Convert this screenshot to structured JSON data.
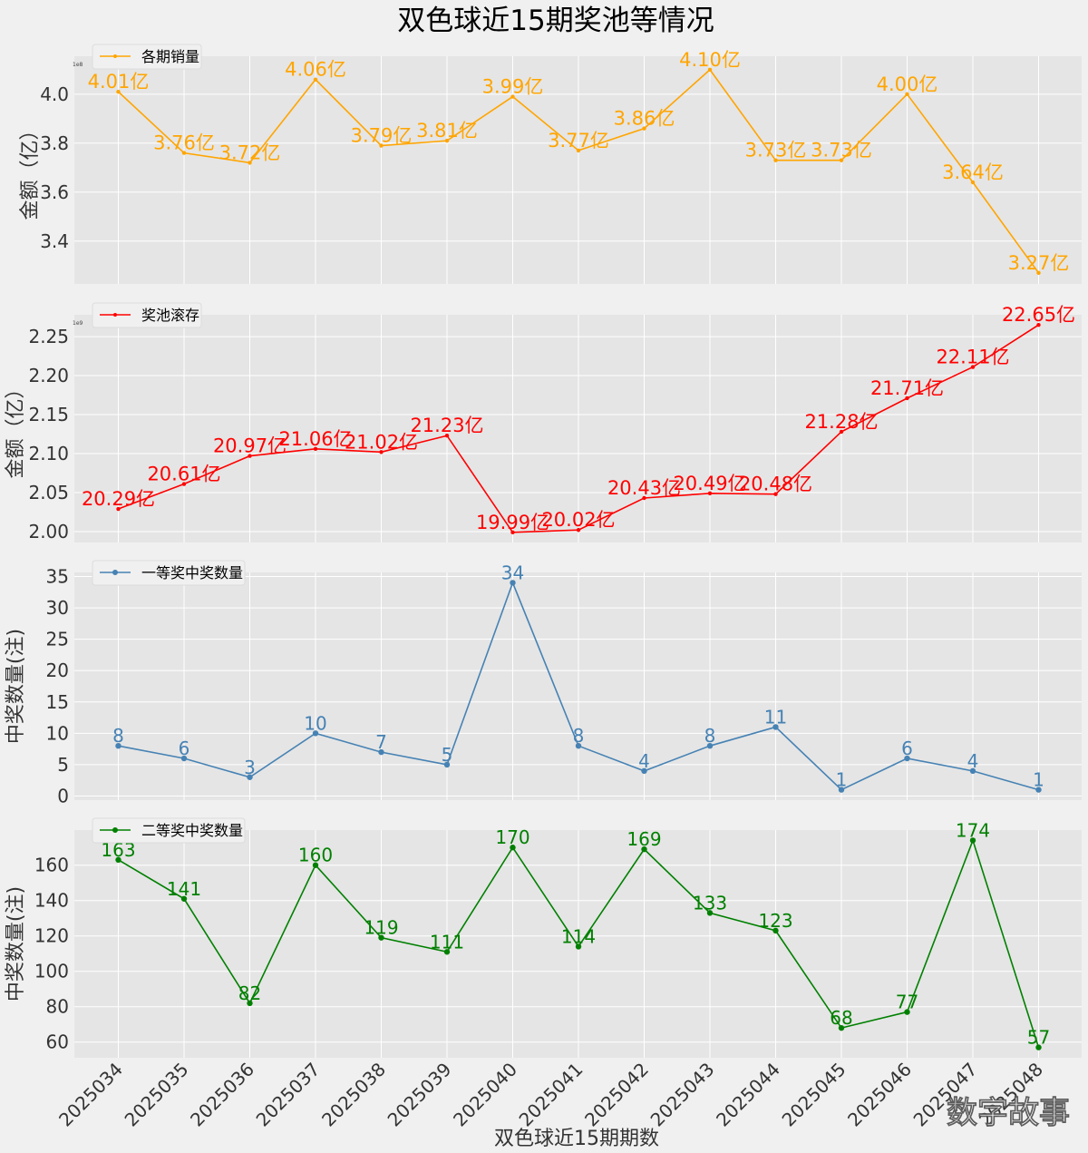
{
  "figure": {
    "title": "双色球近15期奖池等情况",
    "xlabel": "双色球近15期期数",
    "watermark": "数字故事",
    "background": "#f0f0f0",
    "plot_background": "#e5e5e5",
    "grid_color": "#ffffff"
  },
  "chart_data": [
    {
      "type": "line",
      "legend": "各期销量",
      "color": "#FFA500",
      "ylabel": "金额（亿）",
      "scale_note": "1e8",
      "categories": [
        "2025034",
        "2025035",
        "2025036",
        "2025037",
        "2025038",
        "2025039",
        "2025040",
        "2025041",
        "2025042",
        "2025043",
        "2025044",
        "2025045",
        "2025046",
        "2025047",
        "2025048"
      ],
      "values": [
        4.01,
        3.76,
        3.72,
        4.06,
        3.79,
        3.81,
        3.99,
        3.77,
        3.86,
        4.1,
        3.73,
        3.73,
        4.0,
        3.64,
        3.27
      ],
      "data_labels": [
        "4.01亿",
        "3.76亿",
        "3.72亿",
        "4.06亿",
        "3.79亿",
        "3.81亿",
        "3.99亿",
        "3.77亿",
        "3.86亿",
        "4.10亿",
        "3.73亿",
        "3.73亿",
        "4.00亿",
        "3.64亿",
        "3.27亿"
      ],
      "ylim": [
        3.225,
        4.155
      ],
      "yticks": [
        3.4,
        3.6,
        3.8,
        4.0
      ],
      "ytick_labels": [
        "3.4",
        "3.6",
        "3.8",
        "4.0"
      ],
      "grid": true,
      "legend_position": "top-left"
    },
    {
      "type": "line",
      "legend": "奖池滚存",
      "color": "#FF0000",
      "ylabel": "金额（亿）",
      "scale_note": "1e9",
      "categories": [
        "2025034",
        "2025035",
        "2025036",
        "2025037",
        "2025038",
        "2025039",
        "2025040",
        "2025041",
        "2025042",
        "2025043",
        "2025044",
        "2025045",
        "2025046",
        "2025047",
        "2025048"
      ],
      "values": [
        2.029,
        2.061,
        2.097,
        2.106,
        2.102,
        2.123,
        1.999,
        2.002,
        2.043,
        2.049,
        2.048,
        2.128,
        2.171,
        2.211,
        2.265
      ],
      "data_labels": [
        "20.29亿",
        "20.61亿",
        "20.97亿",
        "21.06亿",
        "21.02亿",
        "21.23亿",
        "19.99亿",
        "20.02亿",
        "20.43亿",
        "20.49亿",
        "20.48亿",
        "21.28亿",
        "21.71亿",
        "22.11亿",
        "22.65亿"
      ],
      "ylim": [
        1.986,
        2.278
      ],
      "yticks": [
        2.0,
        2.05,
        2.1,
        2.15,
        2.2,
        2.25
      ],
      "ytick_labels": [
        "2.00",
        "2.05",
        "2.10",
        "2.15",
        "2.20",
        "2.25"
      ],
      "grid": true,
      "legend_position": "top-left"
    },
    {
      "type": "line",
      "legend": "一等奖中奖数量",
      "color": "#4682B4",
      "ylabel": "中奖数量(注)",
      "categories": [
        "2025034",
        "2025035",
        "2025036",
        "2025037",
        "2025038",
        "2025039",
        "2025040",
        "2025041",
        "2025042",
        "2025043",
        "2025044",
        "2025045",
        "2025046",
        "2025047",
        "2025048"
      ],
      "values": [
        8,
        6,
        3,
        10,
        7,
        5,
        34,
        8,
        4,
        8,
        11,
        1,
        6,
        4,
        1
      ],
      "data_labels": [
        "8",
        "6",
        "3",
        "10",
        "7",
        "5",
        "34",
        "8",
        "4",
        "8",
        "11",
        "1",
        "6",
        "4",
        "1"
      ],
      "ylim": [
        -0.65,
        35.65
      ],
      "yticks": [
        0,
        5,
        10,
        15,
        20,
        25,
        30,
        35
      ],
      "ytick_labels": [
        "0",
        "5",
        "10",
        "15",
        "20",
        "25",
        "30",
        "35"
      ],
      "grid": true,
      "legend_position": "top-left"
    },
    {
      "type": "line",
      "legend": "二等奖中奖数量",
      "color": "#008000",
      "ylabel": "中奖数量(注)",
      "categories": [
        "2025034",
        "2025035",
        "2025036",
        "2025037",
        "2025038",
        "2025039",
        "2025040",
        "2025041",
        "2025042",
        "2025043",
        "2025044",
        "2025045",
        "2025046",
        "2025047",
        "2025048"
      ],
      "values": [
        163,
        141,
        82,
        160,
        119,
        111,
        170,
        114,
        169,
        133,
        123,
        68,
        77,
        174,
        57
      ],
      "data_labels": [
        "163",
        "141",
        "82",
        "160",
        "119",
        "111",
        "170",
        "114",
        "169",
        "133",
        "123",
        "68",
        "77",
        "174",
        "57"
      ],
      "ylim": [
        51.15,
        179.85
      ],
      "yticks": [
        60,
        80,
        100,
        120,
        140,
        160
      ],
      "ytick_labels": [
        "60",
        "80",
        "100",
        "120",
        "140",
        "160"
      ],
      "grid": true,
      "legend_position": "top-left"
    }
  ]
}
